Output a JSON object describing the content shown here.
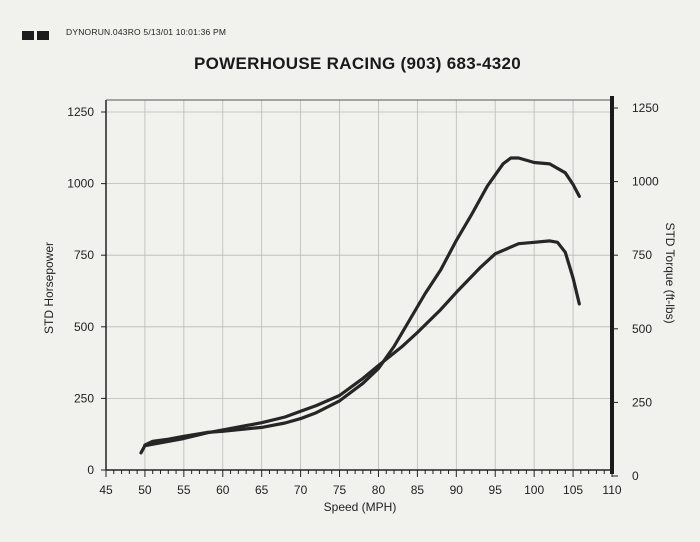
{
  "header": {
    "file_info": "DYNORUN.043RO   5/13/01 10:01:36 PM",
    "title": "POWERHOUSE RACING   (903) 683-4320"
  },
  "chart_data": {
    "type": "line",
    "title": "POWERHOUSE RACING   (903) 683-4320",
    "xlabel": "Speed (MPH)",
    "ylabel": "STD Horsepower",
    "y2label": "STD Torque (ft-lbs)",
    "xlim": [
      45,
      110
    ],
    "ylim": [
      0,
      1250
    ],
    "y2lim": [
      0,
      1250
    ],
    "x_ticks": [
      45,
      50,
      55,
      60,
      65,
      70,
      75,
      80,
      85,
      90,
      95,
      100,
      105,
      110
    ],
    "y_ticks": [
      0,
      250,
      500,
      750,
      1000,
      1250
    ],
    "y2_ticks": [
      0,
      250,
      500,
      750,
      1000,
      1250
    ],
    "grid": true,
    "series": [
      {
        "axis": "left",
        "color": "#262626",
        "points": [
          [
            49.5,
            60
          ],
          [
            50,
            85
          ],
          [
            52,
            95
          ],
          [
            55,
            110
          ],
          [
            58,
            130
          ],
          [
            60,
            140
          ],
          [
            63,
            155
          ],
          [
            65,
            165
          ],
          [
            68,
            185
          ],
          [
            70,
            205
          ],
          [
            72,
            225
          ],
          [
            75,
            260
          ],
          [
            78,
            320
          ],
          [
            80,
            365
          ],
          [
            83,
            430
          ],
          [
            85,
            480
          ],
          [
            88,
            560
          ],
          [
            90,
            620
          ],
          [
            93,
            705
          ],
          [
            95,
            755
          ],
          [
            98,
            790
          ],
          [
            100,
            795
          ],
          [
            102,
            800
          ],
          [
            103,
            795
          ],
          [
            104,
            760
          ],
          [
            105,
            670
          ],
          [
            105.8,
            580
          ]
        ]
      },
      {
        "axis": "right",
        "color": "#262626",
        "points": [
          [
            50,
            105
          ],
          [
            51,
            118
          ],
          [
            53,
            125
          ],
          [
            55,
            135
          ],
          [
            58,
            148
          ],
          [
            60,
            152
          ],
          [
            63,
            160
          ],
          [
            65,
            165
          ],
          [
            68,
            180
          ],
          [
            70,
            195
          ],
          [
            72,
            215
          ],
          [
            75,
            255
          ],
          [
            78,
            315
          ],
          [
            80,
            365
          ],
          [
            82,
            440
          ],
          [
            84,
            530
          ],
          [
            86,
            620
          ],
          [
            88,
            700
          ],
          [
            90,
            800
          ],
          [
            92,
            890
          ],
          [
            94,
            985
          ],
          [
            96,
            1060
          ],
          [
            97,
            1080
          ],
          [
            98,
            1080
          ],
          [
            100,
            1065
          ],
          [
            102,
            1060
          ],
          [
            104,
            1030
          ],
          [
            105,
            990
          ],
          [
            105.8,
            950
          ]
        ]
      }
    ]
  }
}
